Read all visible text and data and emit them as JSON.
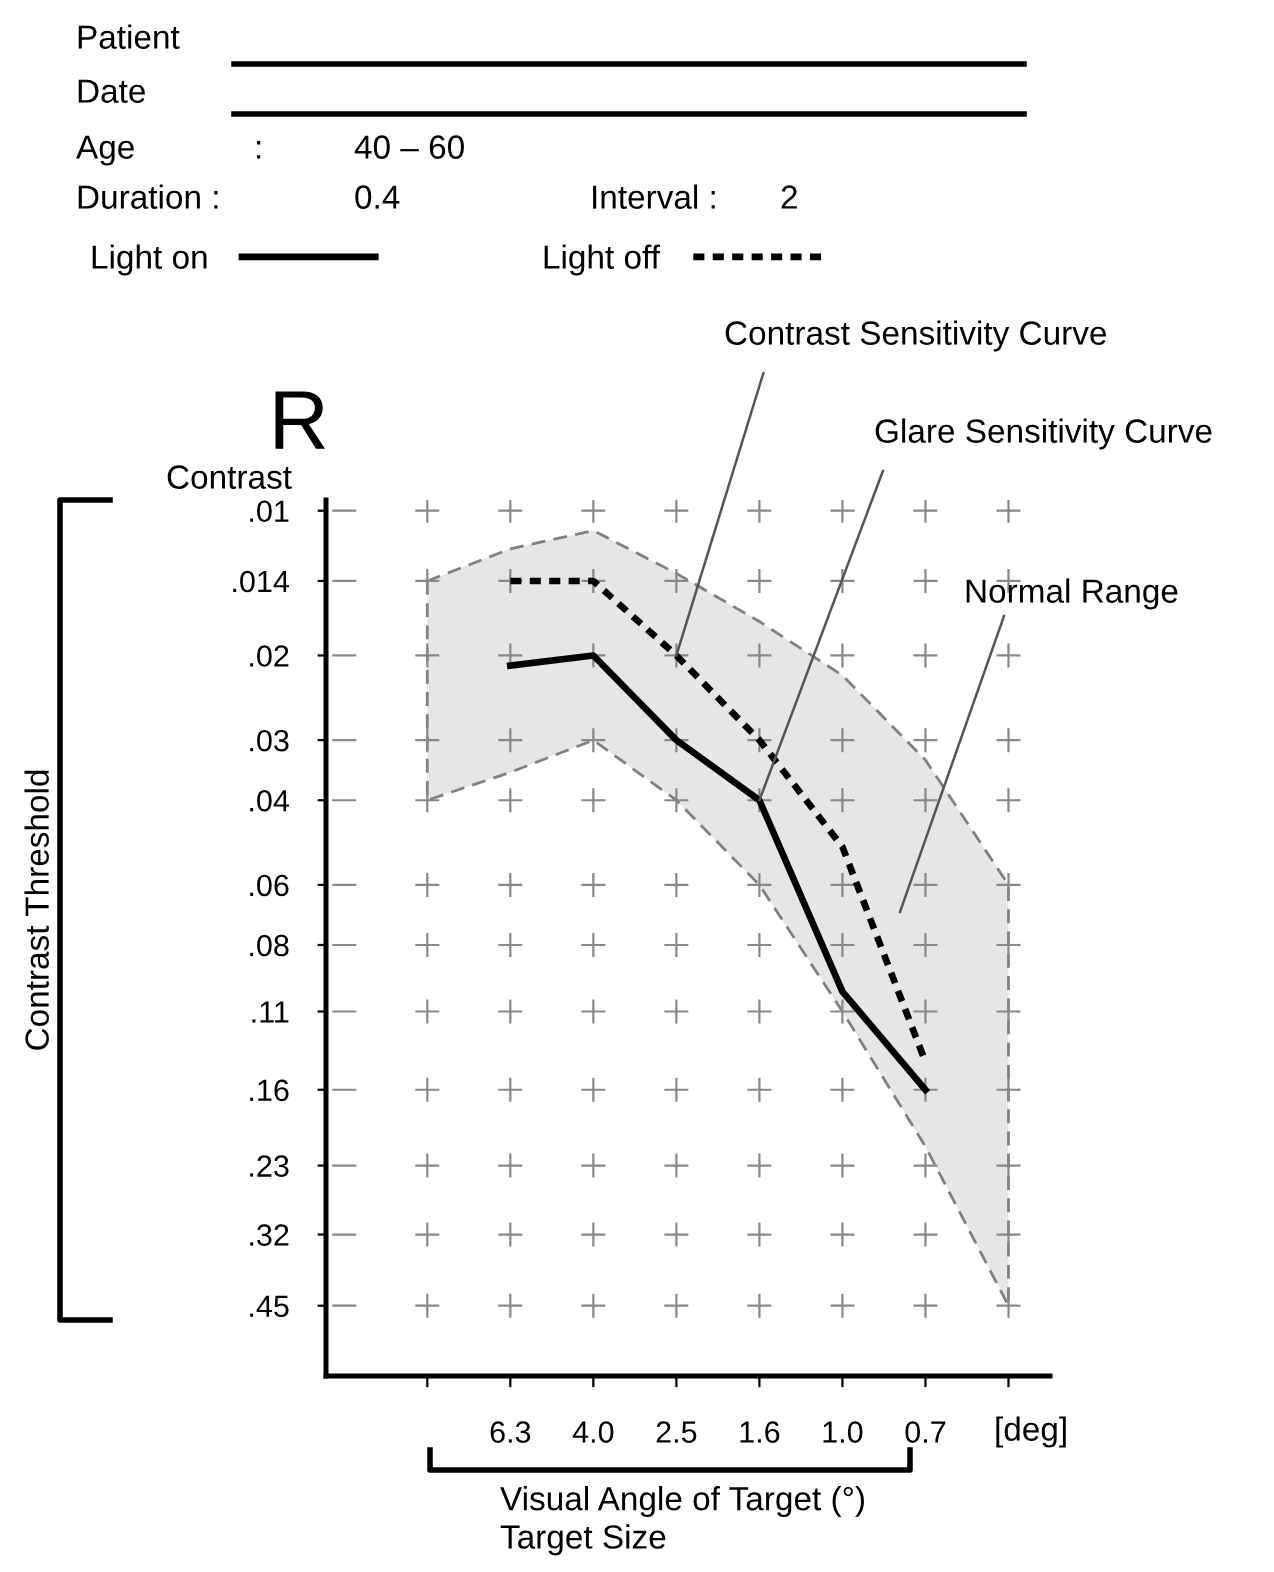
{
  "chart_data": {
    "type": "line",
    "title": "R",
    "xlabel": "Visual Angle of Target (°)\nTarget Size",
    "categories": [
      null,
      "6.3",
      "4.0",
      "2.5",
      "1.6",
      "1.0",
      "0.7",
      null
    ],
    "series": [
      {
        "color": "#e6e6e6",
        "values": [
          null,
          null,
          null,
          null,
          null,
          null,
          null,
          null
        ],
        "lower": [
          0.04,
          0.035,
          0.03,
          0.04,
          0.06,
          0.11,
          0.21,
          0.45
        ],
        "upper": [
          0.014,
          0.012,
          0.011,
          0.0135,
          0.017,
          0.022,
          0.033,
          0.06
        ]
      },
      {
        "name": "Light on",
        "color": "#000000",
        "line_style": "solid",
        "values": [
          null,
          0.021,
          0.02,
          0.03,
          0.04,
          0.1,
          0.16,
          null
        ]
      },
      {
        "name": "Light off",
        "color": "#000000",
        "line_style": "dashed",
        "values": [
          null,
          0.014,
          0.014,
          0.02,
          0.03,
          0.05,
          0.14,
          null
        ]
      }
    ],
    "log": "y",
    "ylim": [
      0.63,
      0.0095
    ],
    "yticks": [
      {
        "value": 0.01,
        "label": ".01"
      },
      {
        "value": 0.014,
        "label": ".014"
      },
      {
        "value": 0.02,
        "label": ".02"
      },
      {
        "value": 0.03,
        "label": ".03"
      },
      {
        "value": 0.04,
        "label": ".04"
      },
      {
        "value": 0.06,
        "label": ".06"
      },
      {
        "value": 0.08,
        "label": ".08"
      },
      {
        "value": 0.11,
        "label": ".11"
      },
      {
        "value": 0.16,
        "label": ".16"
      },
      {
        "value": 0.23,
        "label": ".23"
      },
      {
        "value": 0.32,
        "label": ".32"
      },
      {
        "value": 0.45,
        "label": ".45"
      }
    ],
    "grid": true,
    "legend": "top left",
    "annotations": [
      "Patient",
      "Date",
      "Age",
      ":",
      "40 – 60",
      "Duration :",
      "0.4",
      "Interval :",
      "2",
      "Contrast",
      "[deg]",
      {
        "text": "Contrast Sensitivity Curve",
        "x": "2.5",
        "y": 0.02
      },
      {
        "text": "Glare Sensitivity Curve",
        "x": "1.6",
        "y": 0.04
      },
      "Normal Range",
      "Contrast Threshold"
    ]
  }
}
